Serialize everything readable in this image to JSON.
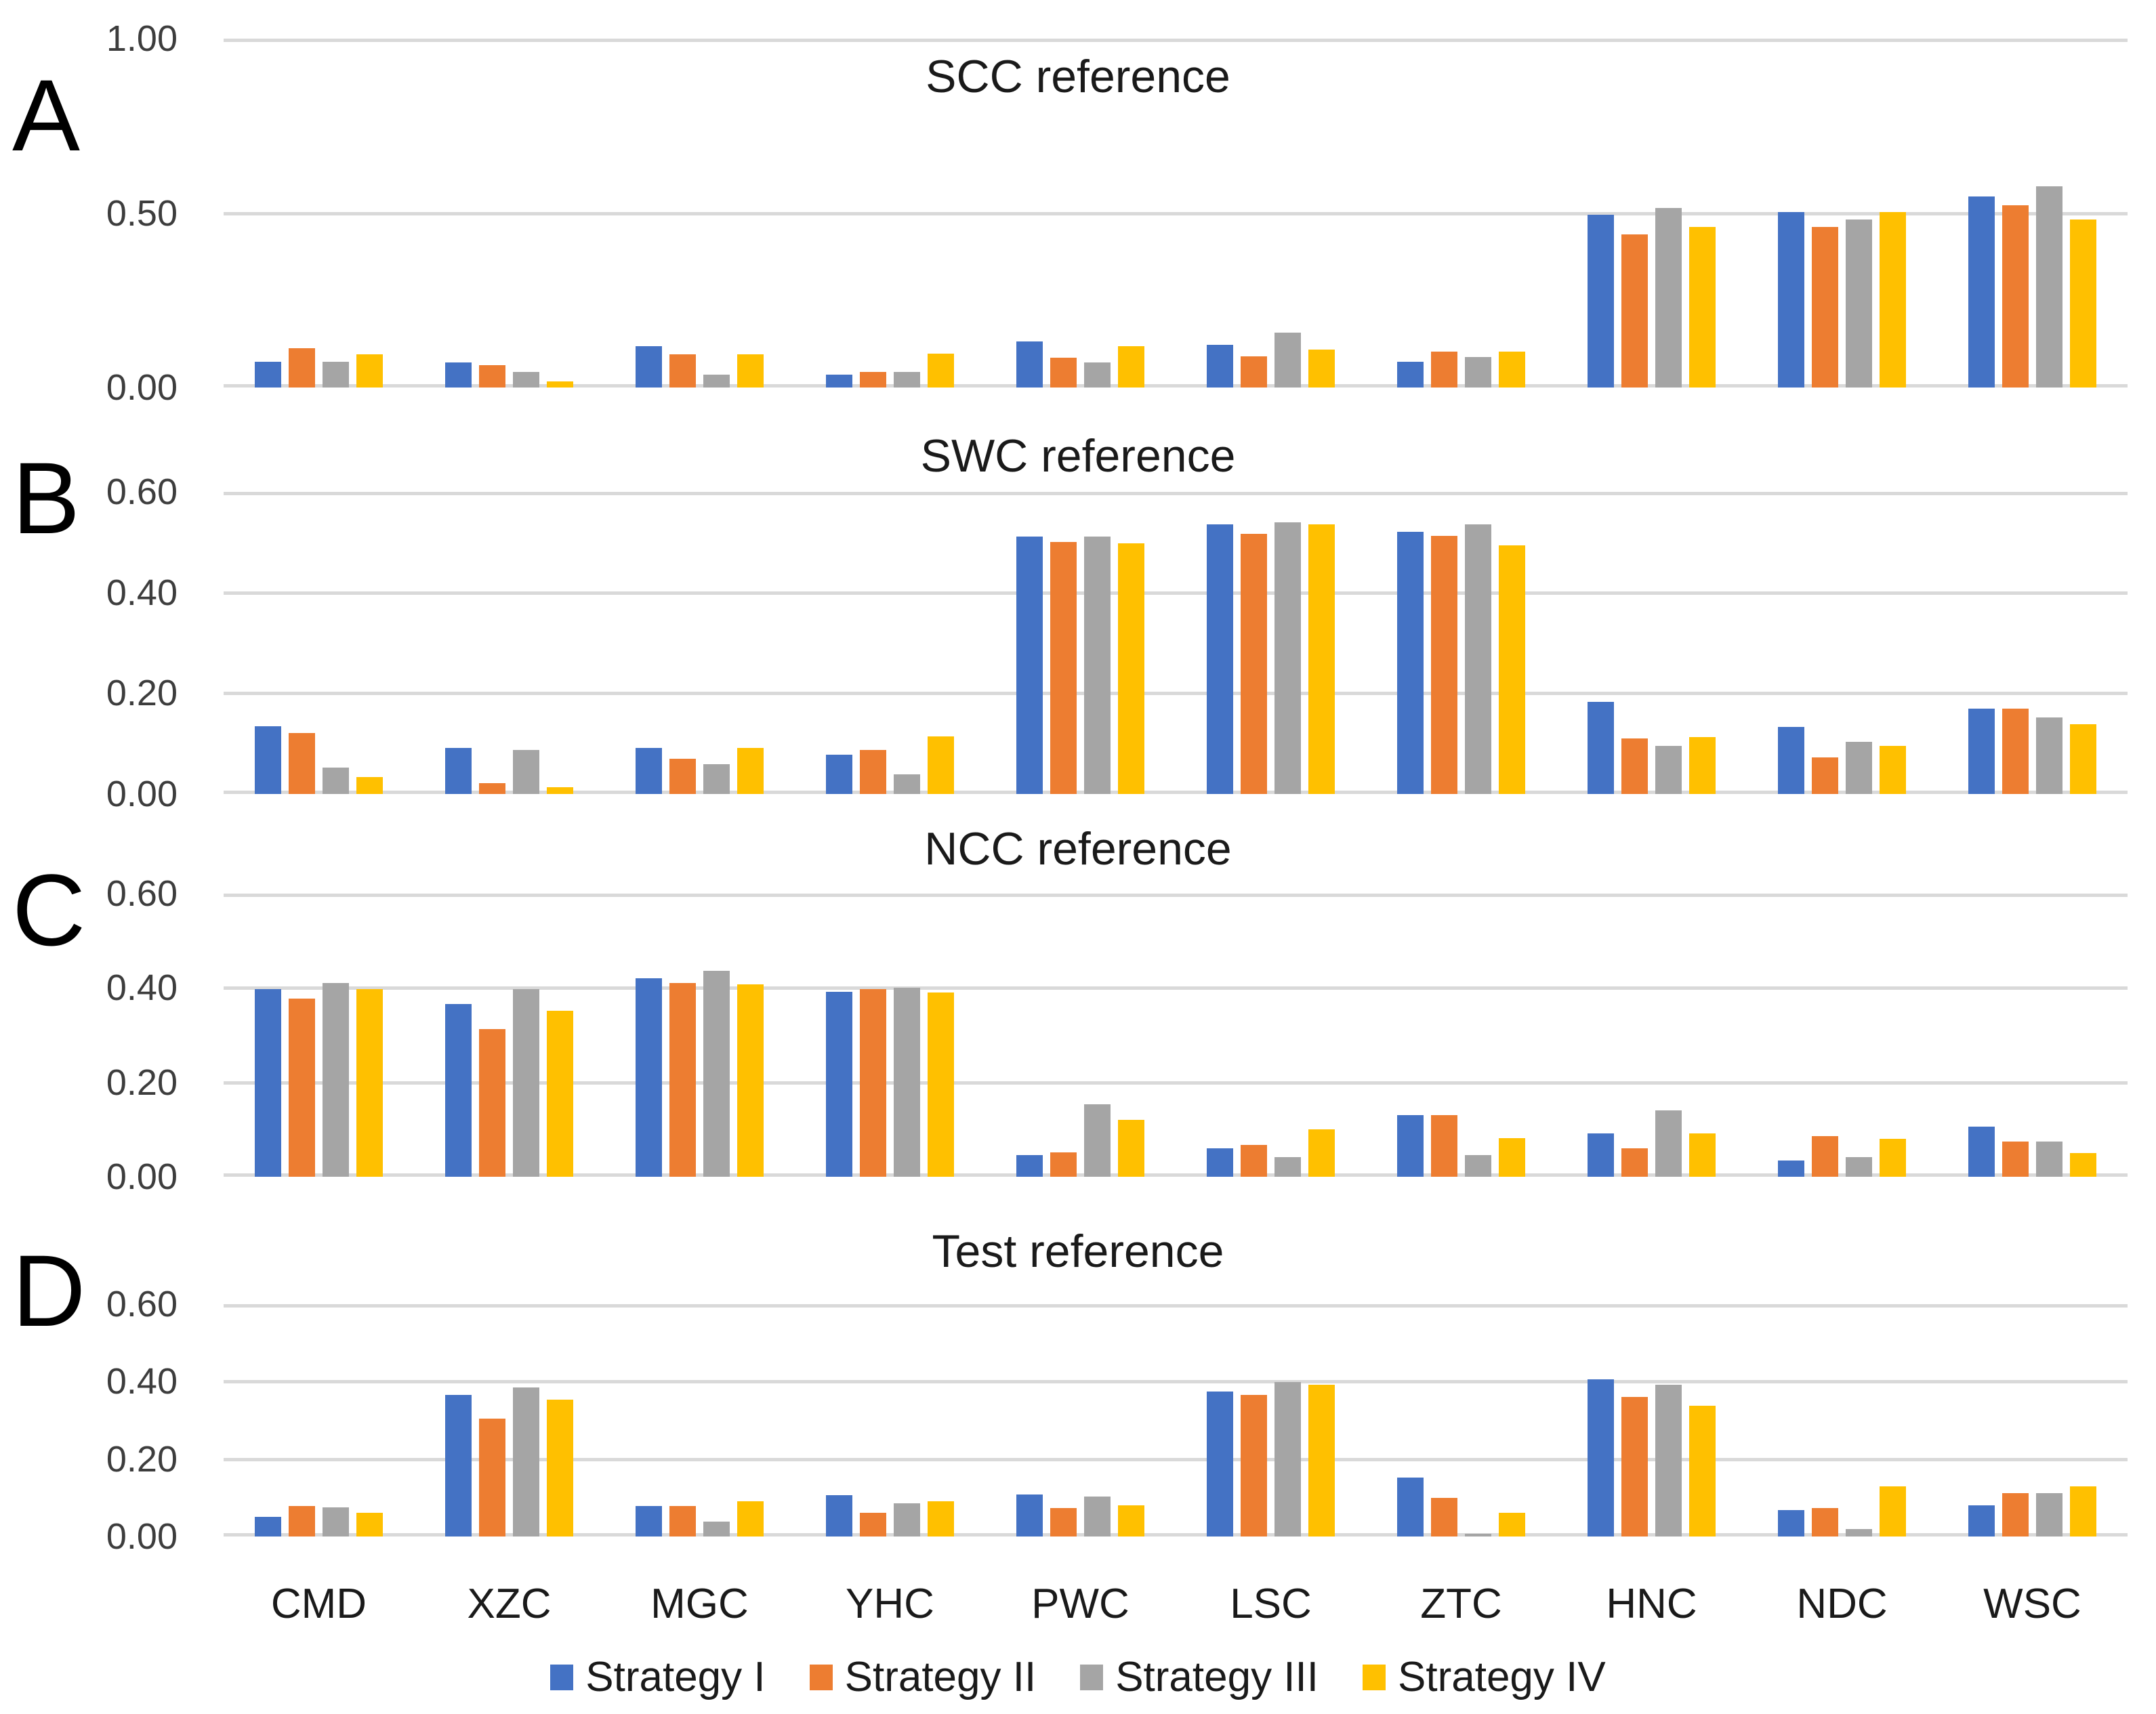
{
  "panel_letters": [
    "A",
    "B",
    "C",
    "D"
  ],
  "categories": [
    "CMD",
    "XZC",
    "MGC",
    "YHC",
    "PWC",
    "LSC",
    "ZTC",
    "HNC",
    "NDC",
    "WSC"
  ],
  "colors": {
    "strategy_i": "#4472C4",
    "strategy_ii": "#ED7D31",
    "strategy_iii": "#A5A5A5",
    "strategy_iv": "#FFC000",
    "gridline": "#D9D9D9",
    "title_text": "#1A1A1A",
    "tick_text": "#3D3D3D"
  },
  "legend": {
    "position": "bottom-center-shared",
    "items": [
      {
        "label": "Strategy I",
        "color": "#4472C4"
      },
      {
        "label": "Strategy II",
        "color": "#ED7D31"
      },
      {
        "label": "Strategy III",
        "color": "#A5A5A5"
      },
      {
        "label": "Strategy IV",
        "color": "#FFC000"
      }
    ]
  },
  "chart_data": [
    {
      "type": "bar",
      "panel_letter": "A",
      "title": "SCC reference",
      "xlabel": "",
      "ylabel": "",
      "ylim": [
        0,
        1.0
      ],
      "yticks": [
        1.0,
        0.5,
        0.0
      ],
      "ytick_labels": [
        "1.00",
        "0.50",
        "0.00"
      ],
      "grid": true,
      "categories": [
        "CMD",
        "XZC",
        "MGC",
        "YHC",
        "PWC",
        "LSC",
        "ZTC",
        "HNC",
        "NDC",
        "WSC"
      ],
      "series": [
        {
          "name": "Strategy I",
          "color": "#4472C4",
          "values": [
            0.073,
            0.071,
            0.118,
            0.036,
            0.133,
            0.123,
            0.073,
            0.495,
            0.502,
            0.548
          ]
        },
        {
          "name": "Strategy II",
          "color": "#ED7D31",
          "values": [
            0.113,
            0.065,
            0.096,
            0.045,
            0.086,
            0.089,
            0.102,
            0.439,
            0.46,
            0.522
          ]
        },
        {
          "name": "Strategy III",
          "color": "#A5A5A5",
          "values": [
            0.073,
            0.045,
            0.036,
            0.045,
            0.072,
            0.157,
            0.087,
            0.514,
            0.481,
            0.577
          ]
        },
        {
          "name": "Strategy IV",
          "color": "#FFC000",
          "values": [
            0.096,
            0.018,
            0.095,
            0.098,
            0.118,
            0.109,
            0.103,
            0.46,
            0.502,
            0.481
          ]
        }
      ]
    },
    {
      "type": "bar",
      "panel_letter": "B",
      "title": "SWC reference",
      "xlabel": "",
      "ylabel": "",
      "ylim": [
        0,
        0.6
      ],
      "yticks": [
        0.6,
        0.4,
        0.2,
        0.0
      ],
      "ytick_labels": [
        "0.60",
        "0.40",
        "0.20",
        "0.00"
      ],
      "grid": true,
      "categories": [
        "CMD",
        "XZC",
        "MGC",
        "YHC",
        "PWC",
        "LSC",
        "ZTC",
        "HNC",
        "NDC",
        "WSC"
      ],
      "series": [
        {
          "name": "Strategy I",
          "color": "#4472C4",
          "values": [
            0.135,
            0.091,
            0.091,
            0.078,
            0.511,
            0.535,
            0.521,
            0.183,
            0.133,
            0.169
          ]
        },
        {
          "name": "Strategy II",
          "color": "#ED7D31",
          "values": [
            0.121,
            0.021,
            0.07,
            0.087,
            0.501,
            0.516,
            0.512,
            0.11,
            0.073,
            0.169
          ]
        },
        {
          "name": "Strategy III",
          "color": "#A5A5A5",
          "values": [
            0.052,
            0.087,
            0.059,
            0.039,
            0.511,
            0.54,
            0.535,
            0.095,
            0.104,
            0.152
          ]
        },
        {
          "name": "Strategy IV",
          "color": "#FFC000",
          "values": [
            0.033,
            0.013,
            0.091,
            0.114,
            0.498,
            0.535,
            0.494,
            0.113,
            0.095,
            0.139
          ]
        }
      ]
    },
    {
      "type": "bar",
      "panel_letter": "C",
      "title": "NCC reference",
      "xlabel": "",
      "ylabel": "",
      "ylim": [
        0,
        0.6
      ],
      "yticks": [
        0.6,
        0.4,
        0.2,
        0.0
      ],
      "ytick_labels": [
        "0.60",
        "0.40",
        "0.20",
        "0.00"
      ],
      "grid": true,
      "categories": [
        "CMD",
        "XZC",
        "MGC",
        "YHC",
        "PWC",
        "LSC",
        "ZTC",
        "HNC",
        "NDC",
        "WSC"
      ],
      "series": [
        {
          "name": "Strategy I",
          "color": "#4472C4",
          "values": [
            0.397,
            0.366,
            0.421,
            0.392,
            0.046,
            0.06,
            0.13,
            0.092,
            0.035,
            0.106
          ]
        },
        {
          "name": "Strategy II",
          "color": "#ED7D31",
          "values": [
            0.377,
            0.313,
            0.411,
            0.397,
            0.052,
            0.067,
            0.13,
            0.061,
            0.086,
            0.075
          ]
        },
        {
          "name": "Strategy III",
          "color": "#A5A5A5",
          "values": [
            0.411,
            0.397,
            0.436,
            0.4,
            0.154,
            0.042,
            0.046,
            0.14,
            0.041,
            0.074
          ]
        },
        {
          "name": "Strategy IV",
          "color": "#FFC000",
          "values": [
            0.397,
            0.352,
            0.407,
            0.39,
            0.121,
            0.1,
            0.082,
            0.092,
            0.081,
            0.05
          ]
        }
      ]
    },
    {
      "type": "bar",
      "panel_letter": "D",
      "title": "Test reference",
      "xlabel": "",
      "ylabel": "",
      "ylim": [
        0,
        0.6
      ],
      "yticks": [
        0.6,
        0.4,
        0.2,
        0.0
      ],
      "ytick_labels": [
        "0.60",
        "0.40",
        "0.20",
        "0.00"
      ],
      "grid": true,
      "categories": [
        "CMD",
        "XZC",
        "MGC",
        "YHC",
        "PWC",
        "LSC",
        "ZTC",
        "HNC",
        "NDC",
        "WSC"
      ],
      "series": [
        {
          "name": "Strategy I",
          "color": "#4472C4",
          "values": [
            0.05,
            0.365,
            0.078,
            0.106,
            0.109,
            0.374,
            0.153,
            0.405,
            0.068,
            0.08
          ]
        },
        {
          "name": "Strategy II",
          "color": "#ED7D31",
          "values": [
            0.079,
            0.304,
            0.078,
            0.062,
            0.074,
            0.366,
            0.099,
            0.36,
            0.074,
            0.112
          ]
        },
        {
          "name": "Strategy III",
          "color": "#A5A5A5",
          "values": [
            0.075,
            0.384,
            0.039,
            0.086,
            0.103,
            0.398,
            0.007,
            0.392,
            0.019,
            0.112
          ]
        },
        {
          "name": "Strategy IV",
          "color": "#FFC000",
          "values": [
            0.062,
            0.353,
            0.091,
            0.091,
            0.08,
            0.392,
            0.062,
            0.337,
            0.13,
            0.13
          ]
        }
      ]
    }
  ]
}
